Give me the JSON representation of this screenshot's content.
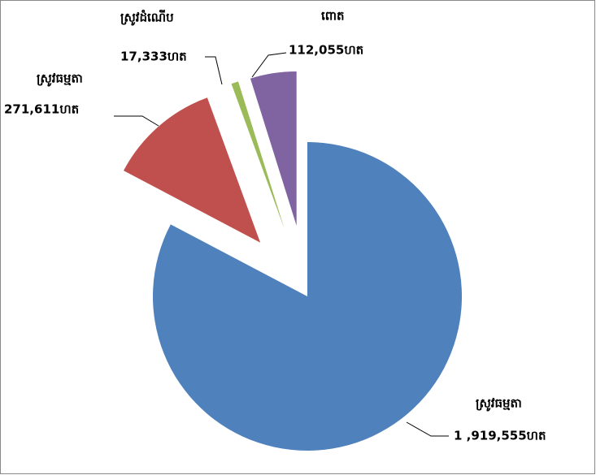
{
  "chart_data": {
    "type": "pie",
    "categories": [
      "ស្រូវធម្មតា",
      "ស្រូវធម្មតា",
      "ស្រូវដំណើប",
      "ពោត"
    ],
    "values": [
      1919555,
      271611,
      17333,
      112055
    ],
    "value_labels": [
      "1 ,919,555ហត",
      "271,611ហត",
      "17,333ហត",
      "112,055ហត"
    ],
    "colors": [
      "#4f81bd",
      "#c0504d",
      "#9bbb59",
      "#8064a2"
    ]
  }
}
